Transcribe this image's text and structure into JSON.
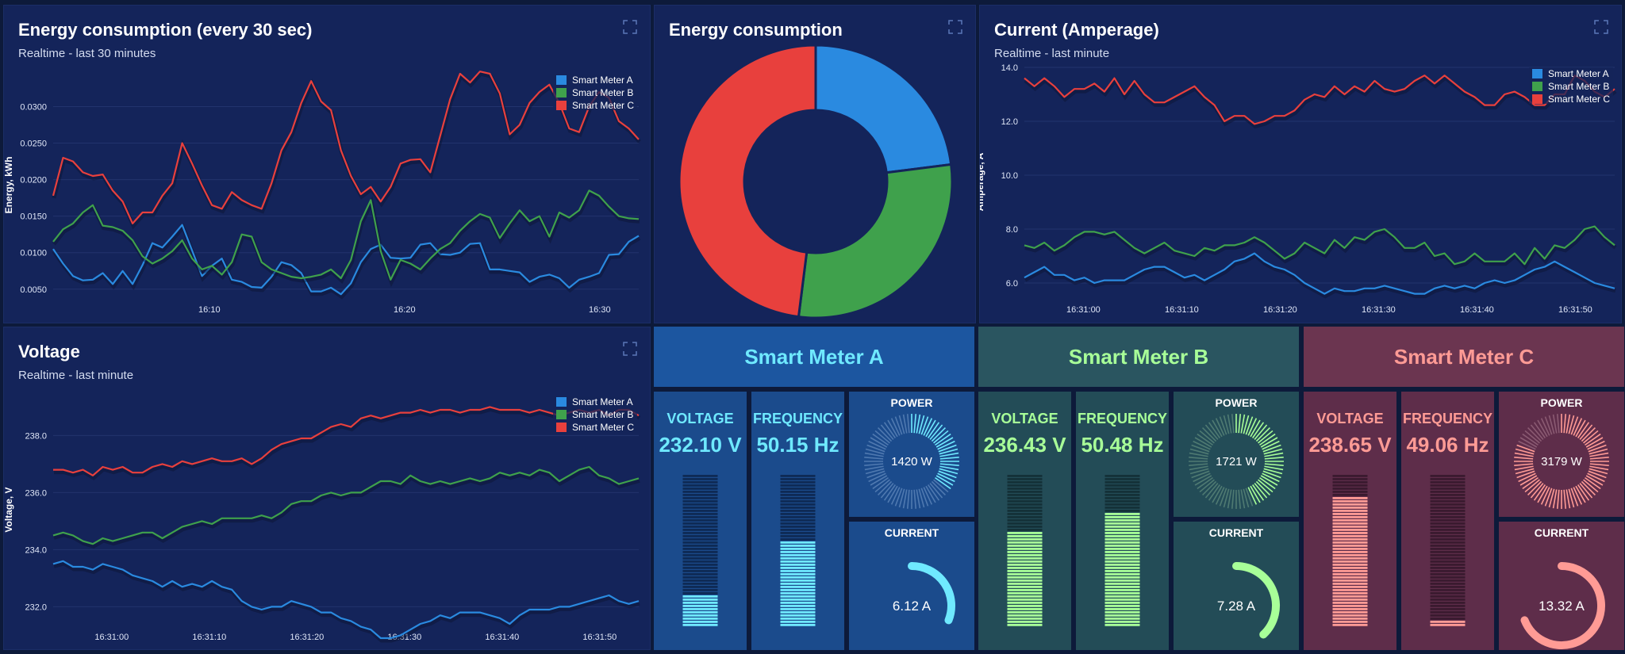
{
  "colors": {
    "meter_a": "#2a8ae0",
    "meter_b": "#3fa14c",
    "meter_c": "#e8403d"
  },
  "panels": {
    "energy_line": {
      "title": "Energy consumption (every 30 sec)",
      "subtitle": "Realtime - last 30 minutes",
      "expand_icon": "expand-icon"
    },
    "energy_donut": {
      "title": "Energy consumption",
      "expand_icon": "expand-icon"
    },
    "current_line": {
      "title": "Current (Amperage)",
      "subtitle": "Realtime - last minute",
      "expand_icon": "expand-icon"
    },
    "voltage_line": {
      "title": "Voltage",
      "subtitle": "Realtime - last minute",
      "expand_icon": "expand-icon"
    }
  },
  "meters": [
    {
      "name": "Smart Meter A",
      "voltage_label": "VOLTAGE",
      "voltage_value": "232.10 V",
      "voltage_level": 0.2,
      "frequency_label": "FREQUENCY",
      "frequency_value": "50.15 Hz",
      "frequency_level": 0.57,
      "power_label": "POWER",
      "power_value": "1420 W",
      "power_level": 0.36,
      "current_label": "CURRENT",
      "current_value": "6.12 A",
      "current_level": 0.31
    },
    {
      "name": "Smart Meter B",
      "voltage_label": "VOLTAGE",
      "voltage_value": "236.43 V",
      "voltage_level": 0.63,
      "frequency_label": "FREQUENCY",
      "frequency_value": "50.48 Hz",
      "frequency_level": 0.74,
      "power_label": "POWER",
      "power_value": "1721 W",
      "power_level": 0.44,
      "current_label": "CURRENT",
      "current_value": "7.28 A",
      "current_level": 0.38
    },
    {
      "name": "Smart Meter C",
      "voltage_label": "VOLTAGE",
      "voltage_value": "238.65 V",
      "voltage_level": 0.85,
      "frequency_label": "FREQUENCY",
      "frequency_value": "49.06 Hz",
      "frequency_level": 0.04,
      "power_label": "POWER",
      "power_value": "3179 W",
      "power_level": 0.82,
      "current_label": "CURRENT",
      "current_value": "13.32 A",
      "current_level": 0.69
    }
  ],
  "chart_data": [
    {
      "type": "line",
      "ylabel": "Energy, kWh",
      "ylim": [
        0.004,
        0.0345
      ],
      "yticks": [
        "0.0050",
        "0.0100",
        "0.0150",
        "0.0200",
        "0.0250",
        "0.0300"
      ],
      "ytick_values": [
        0.005,
        0.01,
        0.015,
        0.02,
        0.025,
        0.03
      ],
      "xlim": [
        0,
        60
      ],
      "xticks": [
        "16:10",
        "16:20",
        "16:30"
      ],
      "xtick_values": [
        16,
        36,
        56
      ],
      "legend": "top-right",
      "series": [
        {
          "name": "Smart Meter A",
          "values": [
            0.0105,
            0.0085,
            0.0068,
            0.0062,
            0.0063,
            0.0072,
            0.0057,
            0.0075,
            0.0057,
            0.0083,
            0.0113,
            0.0107,
            0.0122,
            0.0138,
            0.0103,
            0.0068,
            0.0082,
            0.0092,
            0.0063,
            0.006,
            0.0053,
            0.0052,
            0.0067,
            0.0087,
            0.0083,
            0.0072,
            0.0047,
            0.0047,
            0.0052,
            0.0043,
            0.0058,
            0.0087,
            0.0105,
            0.0111,
            0.0093,
            0.0092,
            0.0093,
            0.0111,
            0.0113,
            0.0098,
            0.0097,
            0.01,
            0.0112,
            0.0113,
            0.0077,
            0.0077,
            0.0075,
            0.0073,
            0.006,
            0.0067,
            0.007,
            0.0065,
            0.0052,
            0.0063,
            0.0067,
            0.0072,
            0.0097,
            0.0098,
            0.0115,
            0.0123
          ]
        },
        {
          "name": "Smart Meter B",
          "values": [
            0.0115,
            0.0132,
            0.014,
            0.0155,
            0.0165,
            0.0137,
            0.0135,
            0.013,
            0.0117,
            0.0095,
            0.0085,
            0.0092,
            0.0102,
            0.0117,
            0.0092,
            0.0077,
            0.0082,
            0.007,
            0.0087,
            0.0125,
            0.0122,
            0.0087,
            0.0077,
            0.0072,
            0.0067,
            0.0065,
            0.0067,
            0.007,
            0.0077,
            0.0065,
            0.009,
            0.0143,
            0.0172,
            0.0102,
            0.0063,
            0.009,
            0.0085,
            0.0077,
            0.0092,
            0.0105,
            0.0113,
            0.013,
            0.0143,
            0.0153,
            0.0148,
            0.012,
            0.014,
            0.0158,
            0.0143,
            0.015,
            0.0122,
            0.0155,
            0.0148,
            0.0158,
            0.0185,
            0.0178,
            0.0163,
            0.015,
            0.0147,
            0.0146
          ]
        },
        {
          "name": "Smart Meter C",
          "values": [
            0.0178,
            0.023,
            0.0225,
            0.021,
            0.0205,
            0.0207,
            0.0185,
            0.017,
            0.014,
            0.0155,
            0.0155,
            0.0178,
            0.0195,
            0.025,
            0.0222,
            0.0192,
            0.0165,
            0.016,
            0.0183,
            0.0172,
            0.0165,
            0.016,
            0.0195,
            0.024,
            0.0265,
            0.0305,
            0.0335,
            0.0307,
            0.0295,
            0.024,
            0.0205,
            0.018,
            0.019,
            0.017,
            0.019,
            0.0222,
            0.0227,
            0.0228,
            0.021,
            0.026,
            0.031,
            0.0345,
            0.0333,
            0.0348,
            0.0345,
            0.0318,
            0.0262,
            0.0275,
            0.0305,
            0.032,
            0.033,
            0.0305,
            0.027,
            0.0265,
            0.03,
            0.032,
            0.0312,
            0.028,
            0.027,
            0.0255
          ]
        }
      ]
    },
    {
      "type": "pie",
      "donut": true,
      "categories": [
        "Smart Meter A",
        "Smart Meter B",
        "Smart Meter C"
      ],
      "values": [
        23,
        29,
        48
      ]
    },
    {
      "type": "line",
      "ylabel": "Amperage, A",
      "ylim": [
        5.5,
        14.0
      ],
      "yticks": [
        "6.0",
        "8.0",
        "10.0",
        "12.0",
        "14.0"
      ],
      "ytick_values": [
        6,
        8,
        10,
        12,
        14
      ],
      "xlim": [
        0,
        60
      ],
      "xticks": [
        "16:31:00",
        "16:31:10",
        "16:31:20",
        "16:31:30",
        "16:31:40",
        "16:31:50"
      ],
      "xtick_values": [
        6,
        16,
        26,
        36,
        46,
        56
      ],
      "legend": "top-right",
      "series": [
        {
          "name": "Smart Meter A",
          "values": [
            6.2,
            6.4,
            6.6,
            6.3,
            6.3,
            6.1,
            6.2,
            6.0,
            6.1,
            6.1,
            6.1,
            6.3,
            6.5,
            6.6,
            6.6,
            6.4,
            6.2,
            6.3,
            6.1,
            6.3,
            6.5,
            6.8,
            6.9,
            7.1,
            6.8,
            6.6,
            6.5,
            6.3,
            6.0,
            5.8,
            5.6,
            5.8,
            5.7,
            5.7,
            5.8,
            5.8,
            5.9,
            5.8,
            5.7,
            5.6,
            5.6,
            5.8,
            5.9,
            5.8,
            5.9,
            5.8,
            6.0,
            6.1,
            6.0,
            6.1,
            6.3,
            6.5,
            6.6,
            6.8,
            6.6,
            6.4,
            6.2,
            6.0,
            5.9,
            5.8
          ]
        },
        {
          "name": "Smart Meter B",
          "values": [
            7.4,
            7.3,
            7.5,
            7.2,
            7.4,
            7.7,
            7.9,
            7.9,
            7.8,
            7.9,
            7.6,
            7.3,
            7.1,
            7.3,
            7.5,
            7.2,
            7.1,
            7.0,
            7.3,
            7.2,
            7.4,
            7.4,
            7.5,
            7.7,
            7.5,
            7.2,
            6.9,
            7.1,
            7.5,
            7.3,
            7.1,
            7.6,
            7.3,
            7.7,
            7.6,
            7.9,
            8.0,
            7.7,
            7.3,
            7.3,
            7.5,
            7.0,
            7.1,
            6.7,
            6.8,
            7.1,
            6.8,
            6.8,
            6.8,
            7.1,
            6.7,
            7.3,
            6.9,
            7.4,
            7.3,
            7.6,
            8.0,
            8.1,
            7.7,
            7.4
          ]
        },
        {
          "name": "Smart Meter C",
          "values": [
            13.6,
            13.3,
            13.6,
            13.3,
            12.9,
            13.2,
            13.2,
            13.4,
            13.1,
            13.6,
            13.0,
            13.5,
            13.0,
            12.7,
            12.7,
            12.9,
            13.1,
            13.3,
            12.9,
            12.6,
            12.0,
            12.2,
            12.2,
            11.9,
            12.0,
            12.2,
            12.2,
            12.4,
            12.8,
            13.0,
            12.9,
            13.3,
            13.0,
            13.3,
            13.1,
            13.5,
            13.2,
            13.1,
            13.2,
            13.5,
            13.7,
            13.4,
            13.7,
            13.4,
            13.1,
            12.9,
            12.6,
            12.6,
            13.0,
            13.1,
            12.9,
            12.6,
            12.6,
            13.0,
            13.0,
            13.7,
            13.5,
            13.1,
            12.9,
            13.2
          ]
        }
      ]
    },
    {
      "type": "line",
      "ylabel": "Voltage, V",
      "ylim": [
        231.4,
        239.4
      ],
      "yticks": [
        "232.0",
        "234.0",
        "236.0",
        "238.0"
      ],
      "ytick_values": [
        232,
        234,
        236,
        238
      ],
      "xlim": [
        0,
        60
      ],
      "xticks": [
        "16:31:00",
        "16:31:10",
        "16:31:20",
        "16:31:30",
        "16:31:40",
        "16:31:50"
      ],
      "xtick_values": [
        6,
        16,
        26,
        36,
        46,
        56
      ],
      "legend": "top-right",
      "series": [
        {
          "name": "Smart Meter A",
          "values": [
            233.5,
            233.6,
            233.4,
            233.4,
            233.3,
            233.5,
            233.4,
            233.3,
            233.1,
            233.0,
            232.9,
            232.7,
            232.9,
            232.7,
            232.8,
            232.7,
            232.9,
            232.7,
            232.6,
            232.2,
            232.0,
            231.9,
            232.0,
            232.0,
            232.2,
            232.1,
            232.0,
            231.8,
            231.8,
            231.6,
            231.5,
            231.3,
            231.2,
            230.9,
            230.9,
            231.0,
            231.2,
            231.4,
            231.5,
            231.7,
            231.6,
            231.8,
            231.8,
            231.8,
            231.7,
            231.6,
            231.4,
            231.7,
            231.9,
            231.9,
            231.9,
            232.0,
            232.0,
            232.1,
            232.2,
            232.3,
            232.4,
            232.2,
            232.1,
            232.2
          ]
        },
        {
          "name": "Smart Meter B",
          "values": [
            234.5,
            234.6,
            234.5,
            234.3,
            234.2,
            234.4,
            234.3,
            234.4,
            234.5,
            234.6,
            234.6,
            234.4,
            234.6,
            234.8,
            234.9,
            235.0,
            234.9,
            235.1,
            235.1,
            235.1,
            235.1,
            235.2,
            235.1,
            235.3,
            235.6,
            235.7,
            235.7,
            235.9,
            236.0,
            235.9,
            236.0,
            236.0,
            236.2,
            236.4,
            236.4,
            236.3,
            236.6,
            236.4,
            236.3,
            236.4,
            236.3,
            236.4,
            236.5,
            236.4,
            236.5,
            236.7,
            236.6,
            236.7,
            236.6,
            236.8,
            236.7,
            236.4,
            236.6,
            236.8,
            236.9,
            236.6,
            236.5,
            236.3,
            236.4,
            236.5
          ]
        },
        {
          "name": "Smart Meter C",
          "values": [
            236.8,
            236.8,
            236.7,
            236.8,
            236.6,
            236.9,
            236.8,
            236.9,
            236.7,
            236.7,
            236.9,
            237.0,
            236.9,
            237.1,
            237.0,
            237.1,
            237.2,
            237.1,
            237.1,
            237.2,
            237.0,
            237.2,
            237.5,
            237.7,
            237.8,
            237.9,
            237.9,
            238.1,
            238.3,
            238.4,
            238.3,
            238.6,
            238.7,
            238.6,
            238.7,
            238.8,
            238.8,
            238.9,
            238.8,
            238.9,
            238.9,
            238.8,
            238.9,
            238.9,
            239.0,
            238.9,
            238.9,
            238.9,
            238.8,
            238.9,
            238.8,
            238.7,
            238.8,
            238.9,
            238.8,
            238.9,
            238.7,
            238.9,
            238.9,
            238.7
          ]
        }
      ]
    }
  ]
}
